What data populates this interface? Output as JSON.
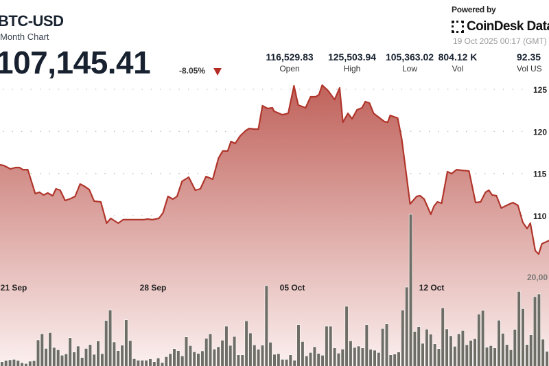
{
  "header": {
    "symbol": "BTC-USD",
    "subtitle": "Month Chart",
    "price": "107,145.41",
    "change": "-8.05%",
    "change_direction": "down",
    "change_icon": "triangle-down-icon"
  },
  "stats": [
    {
      "value": "116,529.83",
      "label": "Open"
    },
    {
      "value": "125,503.94",
      "label": "High"
    },
    {
      "value": "105,363.02",
      "label": "Low"
    },
    {
      "value": "804.12 K",
      "label": "Vol"
    },
    {
      "value": "92.35",
      "label": "Vol US"
    }
  ],
  "branding": {
    "powered_by": "Powered by",
    "logo_text": "CoinDesk Data",
    "timestamp": "19 Oct 2025 00:17 (GMT)"
  },
  "colors": {
    "line": "#b0352b",
    "fill_top": "#c0625b",
    "fill_bottom": "#fbf0ef",
    "volume_bar": "#6e6d66",
    "down": "#b32b22"
  },
  "chart_data": {
    "type": "area",
    "title": "",
    "grid": "dotted horizontal",
    "ylim": [
      105000,
      125500
    ],
    "y_ticks": [
      {
        "value": 125000,
        "label": "125"
      },
      {
        "value": 120000,
        "label": "120"
      },
      {
        "value": 115000,
        "label": "115"
      },
      {
        "value": 110000,
        "label": "110"
      }
    ],
    "x_ticks": [
      {
        "date": "2025-09-21 00:00",
        "label": "21 Sep"
      },
      {
        "date": "2025-09-28 00:00",
        "label": "28 Sep"
      },
      {
        "date": "2025-10-05 00:00",
        "label": "05 Oct"
      },
      {
        "date": "2025-10-12 00:00",
        "label": "12 Oct"
      }
    ],
    "price_series": [
      [
        "2025-09-20 07:00",
        116040
      ],
      [
        "2025-09-20 12:00",
        115950
      ],
      [
        "2025-09-20 20:00",
        115550
      ],
      [
        "2025-09-21 02:00",
        115710
      ],
      [
        "2025-09-21 07:00",
        115710
      ],
      [
        "2025-09-21 11:00",
        115460
      ],
      [
        "2025-09-21 17:00",
        115460
      ],
      [
        "2025-09-22 02:00",
        112610
      ],
      [
        "2025-09-22 07:00",
        112780
      ],
      [
        "2025-09-22 12:00",
        112450
      ],
      [
        "2025-09-22 17:00",
        112690
      ],
      [
        "2025-09-22 23:00",
        112370
      ],
      [
        "2025-09-23 03:00",
        113180
      ],
      [
        "2025-09-23 08:00",
        113020
      ],
      [
        "2025-09-23 14:00",
        111800
      ],
      [
        "2025-09-23 21:00",
        112040
      ],
      [
        "2025-09-24 02:00",
        112290
      ],
      [
        "2025-09-24 08:00",
        113750
      ],
      [
        "2025-09-24 13:00",
        113510
      ],
      [
        "2025-09-24 19:00",
        113100
      ],
      [
        "2025-09-25 01:00",
        111720
      ],
      [
        "2025-09-25 09:00",
        111630
      ],
      [
        "2025-09-25 16:00",
        109110
      ],
      [
        "2025-09-25 21:00",
        109680
      ],
      [
        "2025-09-26 06:00",
        109110
      ],
      [
        "2025-09-26 12:00",
        109520
      ],
      [
        "2025-09-26 23:00",
        109520
      ],
      [
        "2025-09-27 13:00",
        109520
      ],
      [
        "2025-09-27 17:00",
        109600
      ],
      [
        "2025-09-27 23:00",
        109520
      ],
      [
        "2025-09-28 07:00",
        109680
      ],
      [
        "2025-09-28 12:00",
        110330
      ],
      [
        "2025-09-28 18:00",
        112290
      ],
      [
        "2025-09-29 00:00",
        111960
      ],
      [
        "2025-09-29 05:00",
        112290
      ],
      [
        "2025-09-29 11:00",
        114080
      ],
      [
        "2025-09-29 19:00",
        114570
      ],
      [
        "2025-09-30 03:00",
        113020
      ],
      [
        "2025-09-30 09:00",
        113180
      ],
      [
        "2025-09-30 16:00",
        114650
      ],
      [
        "2025-10-01 00:00",
        114320
      ],
      [
        "2025-10-01 07:00",
        116850
      ],
      [
        "2025-10-01 12:00",
        117670
      ],
      [
        "2025-10-01 18:00",
        117670
      ],
      [
        "2025-10-01 22:00",
        118810
      ],
      [
        "2025-10-02 03:00",
        118560
      ],
      [
        "2025-10-02 09:00",
        119460
      ],
      [
        "2025-10-02 16:00",
        120110
      ],
      [
        "2025-10-02 20:00",
        120350
      ],
      [
        "2025-10-03 02:00",
        120270
      ],
      [
        "2025-10-03 07:00",
        120270
      ],
      [
        "2025-10-03 12:00",
        123040
      ],
      [
        "2025-10-03 18:00",
        122720
      ],
      [
        "2025-10-04 00:00",
        122800
      ],
      [
        "2025-10-04 02:00",
        122390
      ],
      [
        "2025-10-04 12:00",
        121980
      ],
      [
        "2025-10-04 19:00",
        122150
      ],
      [
        "2025-10-05 02:00",
        125410
      ],
      [
        "2025-10-05 07:00",
        123130
      ],
      [
        "2025-10-05 16:00",
        122800
      ],
      [
        "2025-10-05 22:00",
        124100
      ],
      [
        "2025-10-06 04:00",
        124100
      ],
      [
        "2025-10-06 08:00",
        124350
      ],
      [
        "2025-10-06 12:00",
        125490
      ],
      [
        "2025-10-06 19:00",
        124840
      ],
      [
        "2025-10-07 03:00",
        123780
      ],
      [
        "2025-10-07 09:00",
        125160
      ],
      [
        "2025-10-07 13:00",
        121090
      ],
      [
        "2025-10-07 19:00",
        122150
      ],
      [
        "2025-10-08 00:00",
        121500
      ],
      [
        "2025-10-08 06:00",
        122560
      ],
      [
        "2025-10-08 12:00",
        122800
      ],
      [
        "2025-10-08 16:00",
        123530
      ],
      [
        "2025-10-08 21:00",
        123370
      ],
      [
        "2025-10-09 02:00",
        122150
      ],
      [
        "2025-10-09 15:00",
        121170
      ],
      [
        "2025-10-09 19:00",
        121090
      ],
      [
        "2025-10-09 22:00",
        121900
      ],
      [
        "2025-10-10 07:00",
        121580
      ],
      [
        "2025-10-10 12:00",
        119050
      ],
      [
        "2025-10-10 22:00",
        111390
      ],
      [
        "2025-10-11 06:00",
        112290
      ],
      [
        "2025-10-11 10:00",
        112370
      ],
      [
        "2025-10-11 15:00",
        111960
      ],
      [
        "2025-10-11 23:00",
        110170
      ],
      [
        "2025-10-12 03:00",
        111150
      ],
      [
        "2025-10-12 07:00",
        111630
      ],
      [
        "2025-10-12 12:00",
        111470
      ],
      [
        "2025-10-12 16:00",
        113590
      ],
      [
        "2025-10-12 19:00",
        115220
      ],
      [
        "2025-10-13 00:00",
        114980
      ],
      [
        "2025-10-13 06:00",
        115460
      ],
      [
        "2025-10-13 12:00",
        115380
      ],
      [
        "2025-10-13 21:00",
        115300
      ],
      [
        "2025-10-14 05:00",
        111550
      ],
      [
        "2025-10-14 11:00",
        111630
      ],
      [
        "2025-10-14 17:00",
        112780
      ],
      [
        "2025-10-14 21:00",
        113020
      ],
      [
        "2025-10-15 01:00",
        112450
      ],
      [
        "2025-10-15 06:00",
        112370
      ],
      [
        "2025-10-15 12:00",
        110900
      ],
      [
        "2025-10-15 22:00",
        111390
      ],
      [
        "2025-10-16 02:00",
        111550
      ],
      [
        "2025-10-16 08:00",
        111230
      ],
      [
        "2025-10-16 14:00",
        109190
      ],
      [
        "2025-10-16 19:00",
        108460
      ],
      [
        "2025-10-16 23:00",
        109110
      ],
      [
        "2025-10-17 05:00",
        105850
      ],
      [
        "2025-10-17 09:00",
        105440
      ],
      [
        "2025-10-17 13:00",
        106660
      ],
      [
        "2025-10-17 22:00",
        107070
      ]
    ],
    "volume_axis": {
      "tick_value": 20000,
      "tick_label": "20,00"
    },
    "volume_values": [
      2580,
      2820,
      2960,
      3050,
      2820,
      2350,
      2210,
      2680,
      2770,
      7040,
      8310,
      5300,
      8540,
      5490,
      5020,
      3900,
      4180,
      7510,
      4550,
      5770,
      3430,
      5300,
      6100,
      4080,
      6810,
      4230,
      11030,
      13150,
      6620,
      4840,
      5960,
      11170,
      6900,
      3190,
      2870,
      2870,
      2870,
      3150,
      2580,
      3330,
      2400,
      3610,
      4230,
      5260,
      4840,
      3760,
      7650,
      5870,
      4600,
      4270,
      4790,
      7370,
      8310,
      5160,
      5630,
      6990,
      9860,
      5920,
      7750,
      3990,
      3990,
      10940,
      8450,
      6010,
      5120,
      5960,
      18170,
      6570,
      4080,
      4230,
      3050,
      3050,
      3990,
      2870,
      10190,
      6710,
      3760,
      4460,
      5630,
      4270,
      3900,
      9860,
      9860,
      5400,
      4320,
      5160,
      13940,
      6850,
      5490,
      5770,
      5400,
      10190,
      5120,
      4930,
      4460,
      9390,
      10330,
      3990,
      4130,
      4550,
      13150,
      17890,
      32820,
      8780,
      9770,
      6340,
      9250,
      8220,
      6240,
      5260,
      13610,
      9300,
      7890,
      5730,
      8310,
      8970,
      6060,
      6950,
      7280,
      12350,
      13100,
      5540,
      5870,
      5400,
      11080,
      8400,
      6100,
      5020,
      9200,
      17000,
      13470,
      6100,
      8080,
      15920,
      16480,
      7180,
      4700
    ]
  }
}
